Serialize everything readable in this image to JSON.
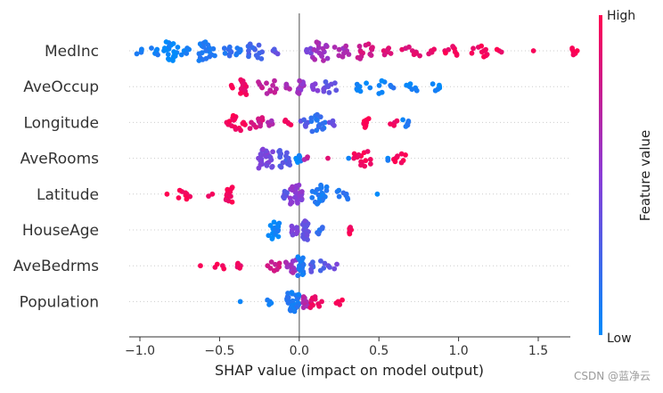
{
  "chart_data": {
    "type": "scatter",
    "subtype": "shap-beeswarm",
    "title": "",
    "xlabel": "SHAP value (impact on model output)",
    "ylabel": "",
    "xlim": [
      -1.1,
      1.8
    ],
    "xticks": [
      -1.0,
      -0.5,
      0.0,
      0.5,
      1.0,
      1.5
    ],
    "xtick_labels": [
      "−1.0",
      "−0.5",
      "0.0",
      "0.5",
      "1.0",
      "1.5"
    ],
    "features": [
      {
        "name": "MedInc",
        "groups": [
          {
            "x": -1.0,
            "v": 0.05,
            "n": 4,
            "spread": 0.03
          },
          {
            "x": -0.91,
            "v": 0.07,
            "n": 6,
            "spread": 0.03
          },
          {
            "x": -0.81,
            "v": 0.03,
            "n": 22,
            "spread": 0.05
          },
          {
            "x": -0.71,
            "v": 0.06,
            "n": 6,
            "spread": 0.03
          },
          {
            "x": -0.58,
            "v": 0.1,
            "n": 20,
            "spread": 0.05
          },
          {
            "x": -0.45,
            "v": 0.16,
            "n": 8,
            "spread": 0.04
          },
          {
            "x": -0.38,
            "v": 0.12,
            "n": 6,
            "spread": 0.03
          },
          {
            "x": -0.28,
            "v": 0.25,
            "n": 14,
            "spread": 0.05
          },
          {
            "x": -0.14,
            "v": 0.32,
            "n": 4,
            "spread": 0.03
          },
          {
            "x": 0.06,
            "v": 0.42,
            "n": 5,
            "spread": 0.03
          },
          {
            "x": 0.13,
            "v": 0.6,
            "n": 18,
            "spread": 0.05
          },
          {
            "x": 0.27,
            "v": 0.62,
            "n": 10,
            "spread": 0.05
          },
          {
            "x": 0.42,
            "v": 0.8,
            "n": 14,
            "spread": 0.06
          },
          {
            "x": 0.55,
            "v": 0.86,
            "n": 6,
            "spread": 0.04
          },
          {
            "x": 0.7,
            "v": 0.85,
            "n": 8,
            "spread": 0.06
          },
          {
            "x": 0.83,
            "v": 0.9,
            "n": 4,
            "spread": 0.04
          },
          {
            "x": 0.95,
            "v": 0.95,
            "n": 9,
            "spread": 0.04
          },
          {
            "x": 1.13,
            "v": 0.95,
            "n": 10,
            "spread": 0.05
          },
          {
            "x": 1.26,
            "v": 0.96,
            "n": 3,
            "spread": 0.02
          },
          {
            "x": 1.47,
            "v": 0.98,
            "n": 1,
            "spread": 0
          },
          {
            "x": 1.73,
            "v": 1.0,
            "n": 6,
            "spread": 0.02
          }
        ]
      },
      {
        "name": "AveOccup",
        "groups": [
          {
            "x": -0.41,
            "v": 0.98,
            "n": 3,
            "spread": 0.02
          },
          {
            "x": -0.35,
            "v": 0.93,
            "n": 14,
            "spread": 0.02
          },
          {
            "x": -0.2,
            "v": 0.72,
            "n": 12,
            "spread": 0.06
          },
          {
            "x": -0.08,
            "v": 0.62,
            "n": 5,
            "spread": 0.03
          },
          {
            "x": 0.01,
            "v": 0.55,
            "n": 12,
            "spread": 0.02
          },
          {
            "x": 0.09,
            "v": 0.45,
            "n": 6,
            "spread": 0.03
          },
          {
            "x": 0.2,
            "v": 0.35,
            "n": 10,
            "spread": 0.05
          },
          {
            "x": 0.45,
            "v": 0.05,
            "n": 12,
            "spread": 0.09
          },
          {
            "x": 0.58,
            "v": 0.1,
            "n": 3,
            "spread": 0.02
          },
          {
            "x": 0.73,
            "v": 0.05,
            "n": 6,
            "spread": 0.06
          },
          {
            "x": 0.86,
            "v": 0.03,
            "n": 6,
            "spread": 0.03
          }
        ]
      },
      {
        "name": "Longitude",
        "groups": [
          {
            "x": -0.46,
            "v": 0.97,
            "n": 2,
            "spread": 0.02
          },
          {
            "x": -0.39,
            "v": 0.95,
            "n": 14,
            "spread": 0.05
          },
          {
            "x": -0.27,
            "v": 0.8,
            "n": 10,
            "spread": 0.04
          },
          {
            "x": -0.18,
            "v": 0.62,
            "n": 4,
            "spread": 0.02
          },
          {
            "x": -0.08,
            "v": 0.95,
            "n": 5,
            "spread": 0.03
          },
          {
            "x": 0.03,
            "v": 0.3,
            "n": 6,
            "spread": 0.03
          },
          {
            "x": 0.12,
            "v": 0.15,
            "n": 16,
            "spread": 0.05
          },
          {
            "x": 0.2,
            "v": 0.35,
            "n": 4,
            "spread": 0.02
          },
          {
            "x": 0.43,
            "v": 0.97,
            "n": 8,
            "spread": 0.03
          },
          {
            "x": 0.6,
            "v": 0.9,
            "n": 4,
            "spread": 0.03
          },
          {
            "x": 0.67,
            "v": 0.1,
            "n": 6,
            "spread": 0.02
          }
        ]
      },
      {
        "name": "AveRooms",
        "groups": [
          {
            "x": -0.21,
            "v": 0.45,
            "n": 24,
            "spread": 0.05
          },
          {
            "x": -0.09,
            "v": 0.3,
            "n": 16,
            "spread": 0.04
          },
          {
            "x": 0.0,
            "v": 0.05,
            "n": 6,
            "spread": 0.02
          },
          {
            "x": 0.04,
            "v": 0.7,
            "n": 3,
            "spread": 0.02
          },
          {
            "x": 0.18,
            "v": 0.9,
            "n": 1,
            "spread": 0
          },
          {
            "x": 0.31,
            "v": 0.1,
            "n": 1,
            "spread": 0
          },
          {
            "x": 0.4,
            "v": 0.95,
            "n": 14,
            "spread": 0.06
          },
          {
            "x": 0.55,
            "v": 0.05,
            "n": 2,
            "spread": 0.02
          },
          {
            "x": 0.63,
            "v": 0.97,
            "n": 9,
            "spread": 0.04
          }
        ]
      },
      {
        "name": "Latitude",
        "groups": [
          {
            "x": -0.83,
            "v": 0.97,
            "n": 1,
            "spread": 0
          },
          {
            "x": -0.72,
            "v": 0.96,
            "n": 8,
            "spread": 0.04
          },
          {
            "x": -0.55,
            "v": 0.97,
            "n": 2,
            "spread": 0.02
          },
          {
            "x": -0.44,
            "v": 0.95,
            "n": 14,
            "spread": 0.02
          },
          {
            "x": -0.1,
            "v": 0.35,
            "n": 6,
            "spread": 0.04
          },
          {
            "x": -0.02,
            "v": 0.5,
            "n": 24,
            "spread": 0.04
          },
          {
            "x": 0.13,
            "v": 0.1,
            "n": 22,
            "spread": 0.05
          },
          {
            "x": 0.27,
            "v": 0.15,
            "n": 8,
            "spread": 0.04
          },
          {
            "x": 0.49,
            "v": 0.05,
            "n": 1,
            "spread": 0
          }
        ]
      },
      {
        "name": "HouseAge",
        "groups": [
          {
            "x": -0.16,
            "v": 0.05,
            "n": 16,
            "spread": 0.04
          },
          {
            "x": -0.03,
            "v": 0.45,
            "n": 8,
            "spread": 0.02
          },
          {
            "x": 0.04,
            "v": 0.35,
            "n": 22,
            "spread": 0.02
          },
          {
            "x": 0.13,
            "v": 0.15,
            "n": 6,
            "spread": 0.02
          },
          {
            "x": 0.32,
            "v": 0.97,
            "n": 6,
            "spread": 0.01
          }
        ]
      },
      {
        "name": "AveBedrms",
        "groups": [
          {
            "x": -0.62,
            "v": 0.97,
            "n": 1,
            "spread": 0
          },
          {
            "x": -0.5,
            "v": 0.95,
            "n": 4,
            "spread": 0.03
          },
          {
            "x": -0.37,
            "v": 0.93,
            "n": 5,
            "spread": 0.02
          },
          {
            "x": -0.16,
            "v": 0.8,
            "n": 8,
            "spread": 0.04
          },
          {
            "x": -0.05,
            "v": 0.6,
            "n": 12,
            "spread": 0.04
          },
          {
            "x": 0.01,
            "v": 0.1,
            "n": 20,
            "spread": 0.02
          },
          {
            "x": 0.12,
            "v": 0.3,
            "n": 10,
            "spread": 0.05
          },
          {
            "x": 0.21,
            "v": 0.4,
            "n": 4,
            "spread": 0.03
          }
        ]
      },
      {
        "name": "Population",
        "groups": [
          {
            "x": -0.37,
            "v": 0.05,
            "n": 1,
            "spread": 0
          },
          {
            "x": -0.18,
            "v": 0.1,
            "n": 4,
            "spread": 0.03
          },
          {
            "x": -0.04,
            "v": 0.1,
            "n": 28,
            "spread": 0.04
          },
          {
            "x": 0.04,
            "v": 0.65,
            "n": 10,
            "spread": 0.02
          },
          {
            "x": 0.11,
            "v": 0.9,
            "n": 10,
            "spread": 0.04
          },
          {
            "x": 0.26,
            "v": 0.95,
            "n": 4,
            "spread": 0.03
          }
        ]
      }
    ],
    "colorbar": {
      "title": "Feature value",
      "high_label": "High",
      "low_label": "Low",
      "low_color": "#008bfb",
      "high_color": "#ff0051",
      "mid_color": "#8b3cd6"
    }
  },
  "watermark": "CSDN @蓝净云"
}
